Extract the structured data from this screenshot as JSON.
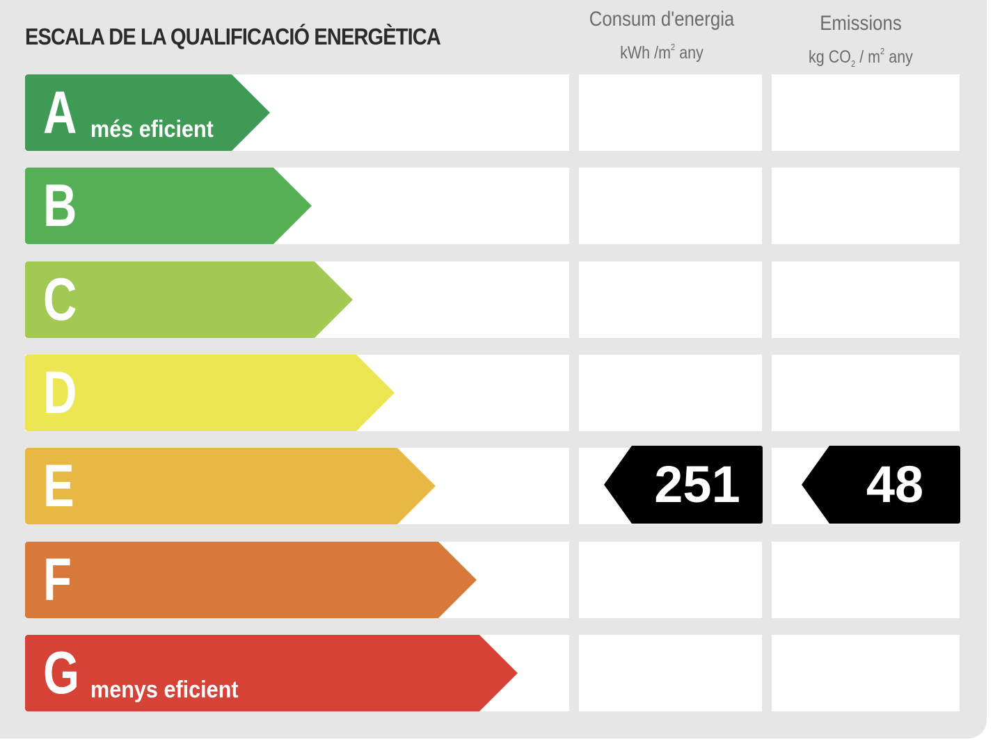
{
  "header": {
    "title": "ESCALA DE LA QUALIFICACIÓ ENERGÈTICA",
    "consum_title": "Consum d'energia",
    "consum_unit_pre": "kWh /m",
    "consum_unit_sup": "2",
    "consum_unit_post": " any",
    "emissions_title": "Emissions",
    "emissions_unit_pre": "kg CO",
    "emissions_unit_sub": "2",
    "emissions_unit_mid": " / m",
    "emissions_unit_sup": "2",
    "emissions_unit_post": " any"
  },
  "ratings": [
    {
      "letter": "A",
      "label": "més eficient",
      "color": "#3f9a56"
    },
    {
      "letter": "B",
      "label": "",
      "color": "#55b055"
    },
    {
      "letter": "C",
      "label": "",
      "color": "#a3c955"
    },
    {
      "letter": "D",
      "label": "",
      "color": "#ebe651"
    },
    {
      "letter": "E",
      "label": "",
      "color": "#e8b844"
    },
    {
      "letter": "F",
      "label": "",
      "color": "#d7793a"
    },
    {
      "letter": "G",
      "label": "menys eficient",
      "color": "#d64236"
    }
  ],
  "result": {
    "rating": "E",
    "consum_value": "251",
    "emissions_value": "48"
  }
}
